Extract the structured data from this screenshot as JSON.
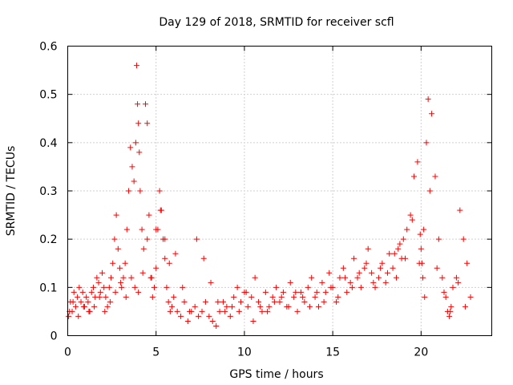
{
  "chart_data": {
    "type": "scatter",
    "title": "Day 129 of 2018, SRMTID for receiver scfl",
    "xlabel": "GPS time / hours",
    "ylabel": "SRMTID / TECUs",
    "xlim": [
      0,
      24
    ],
    "ylim": [
      0,
      0.6
    ],
    "xticks": [
      0,
      5,
      10,
      15,
      20
    ],
    "xtick_labels": [
      "0",
      "5",
      "10",
      "15",
      "20"
    ],
    "yticks": [
      0,
      0.1,
      0.2,
      0.3,
      0.4,
      0.5,
      0.6
    ],
    "ytick_labels": [
      "0",
      "0.1",
      "0.2",
      "0.3",
      "0.4",
      "0.5",
      "0.6"
    ],
    "grid": true,
    "marker": "+",
    "color": "#ff0000",
    "series": [
      {
        "name": "scfl",
        "x": [
          0.05,
          0.15,
          0.25,
          0.35,
          0.45,
          0.55,
          0.65,
          0.75,
          0.85,
          0.95,
          1.05,
          1.15,
          1.25,
          1.35,
          1.45,
          1.55,
          1.65,
          1.75,
          1.85,
          1.95,
          2.05,
          2.15,
          2.25,
          2.35,
          2.45,
          2.55,
          2.65,
          2.75,
          2.85,
          2.95,
          3.05,
          3.15,
          3.25,
          3.35,
          3.45,
          3.55,
          3.65,
          3.75,
          3.85,
          3.9,
          3.95,
          4.0,
          4.05,
          4.1,
          4.2,
          4.3,
          4.4,
          4.5,
          4.6,
          4.7,
          4.8,
          4.9,
          5.0,
          5.1,
          5.2,
          5.3,
          5.4,
          5.5,
          5.6,
          5.7,
          5.8,
          5.9,
          6.0,
          6.2,
          6.4,
          6.6,
          6.8,
          7.0,
          7.2,
          7.4,
          7.6,
          7.8,
          8.0,
          8.2,
          8.4,
          8.6,
          8.8,
          9.0,
          9.2,
          9.4,
          9.6,
          9.8,
          10.0,
          10.2,
          10.4,
          10.6,
          10.8,
          11.0,
          11.2,
          11.4,
          11.6,
          11.8,
          12.0,
          12.2,
          12.4,
          12.6,
          12.8,
          13.0,
          13.2,
          13.4,
          13.6,
          13.8,
          14.0,
          14.2,
          14.4,
          14.6,
          14.8,
          15.0,
          15.2,
          15.4,
          15.6,
          15.8,
          16.0,
          16.2,
          16.4,
          16.6,
          16.8,
          17.0,
          17.2,
          17.4,
          17.6,
          17.8,
          18.0,
          18.2,
          18.4,
          18.6,
          18.8,
          18.9,
          19.0,
          19.2,
          19.4,
          19.6,
          19.8,
          19.95,
          20.0,
          20.05,
          20.1,
          20.2,
          20.3,
          20.4,
          20.6,
          20.8,
          21.0,
          21.2,
          21.4,
          21.5,
          21.6,
          21.7,
          21.8,
          22.0,
          22.2,
          22.4,
          22.6,
          22.8,
          0.1,
          0.3,
          0.6,
          0.9,
          1.2,
          1.5,
          1.8,
          2.1,
          2.4,
          2.7,
          3.0,
          3.3,
          3.6,
          3.8,
          4.0,
          4.25,
          4.5,
          4.75,
          5.0,
          5.25,
          5.5,
          5.75,
          6.1,
          6.5,
          6.9,
          7.3,
          7.7,
          8.1,
          8.5,
          8.9,
          9.3,
          9.7,
          10.1,
          10.5,
          10.9,
          11.3,
          11.7,
          12.1,
          12.5,
          12.9,
          13.3,
          13.7,
          14.1,
          14.5,
          14.9,
          15.3,
          15.7,
          16.1,
          16.5,
          16.9,
          17.3,
          17.7,
          18.1,
          18.5,
          18.7,
          19.1,
          19.5,
          19.9,
          20.15,
          20.5,
          20.9,
          21.3,
          21.65,
          22.1,
          22.5
        ],
        "y": [
          0.04,
          0.07,
          0.05,
          0.09,
          0.06,
          0.08,
          0.1,
          0.07,
          0.09,
          0.06,
          0.08,
          0.07,
          0.05,
          0.09,
          0.1,
          0.08,
          0.12,
          0.11,
          0.09,
          0.13,
          0.1,
          0.08,
          0.06,
          0.1,
          0.12,
          0.15,
          0.2,
          0.25,
          0.18,
          0.14,
          0.1,
          0.12,
          0.15,
          0.22,
          0.3,
          0.39,
          0.35,
          0.32,
          0.4,
          0.56,
          0.48,
          0.44,
          0.38,
          0.3,
          0.22,
          0.18,
          0.48,
          0.44,
          0.25,
          0.12,
          0.08,
          0.1,
          0.14,
          0.22,
          0.3,
          0.26,
          0.2,
          0.16,
          0.1,
          0.07,
          0.05,
          0.06,
          0.08,
          0.05,
          0.04,
          0.07,
          0.03,
          0.05,
          0.06,
          0.04,
          0.05,
          0.07,
          0.04,
          0.03,
          0.02,
          0.05,
          0.07,
          0.06,
          0.04,
          0.08,
          0.1,
          0.07,
          0.09,
          0.06,
          0.08,
          0.12,
          0.07,
          0.05,
          0.09,
          0.06,
          0.08,
          0.1,
          0.07,
          0.09,
          0.06,
          0.11,
          0.08,
          0.05,
          0.09,
          0.07,
          0.1,
          0.12,
          0.08,
          0.06,
          0.11,
          0.09,
          0.13,
          0.1,
          0.07,
          0.12,
          0.14,
          0.09,
          0.11,
          0.16,
          0.12,
          0.1,
          0.14,
          0.18,
          0.13,
          0.1,
          0.12,
          0.15,
          0.11,
          0.17,
          0.14,
          0.12,
          0.19,
          0.16,
          0.2,
          0.22,
          0.25,
          0.33,
          0.36,
          0.21,
          0.18,
          0.15,
          0.12,
          0.08,
          0.4,
          0.49,
          0.46,
          0.33,
          0.2,
          0.12,
          0.08,
          0.05,
          0.04,
          0.06,
          0.1,
          0.12,
          0.26,
          0.2,
          0.15,
          0.08,
          0.05,
          0.07,
          0.04,
          0.06,
          0.05,
          0.06,
          0.08,
          0.05,
          0.07,
          0.09,
          0.11,
          0.08,
          0.12,
          0.1,
          0.09,
          0.13,
          0.2,
          0.12,
          0.22,
          0.26,
          0.2,
          0.15,
          0.17,
          0.1,
          0.05,
          0.2,
          0.16,
          0.11,
          0.07,
          0.05,
          0.06,
          0.05,
          0.09,
          0.03,
          0.06,
          0.05,
          0.07,
          0.08,
          0.06,
          0.09,
          0.08,
          0.06,
          0.09,
          0.07,
          0.1,
          0.08,
          0.12,
          0.1,
          0.13,
          0.15,
          0.11,
          0.14,
          0.13,
          0.17,
          0.18,
          0.16,
          0.24,
          0.15,
          0.22,
          0.3,
          0.14,
          0.09,
          0.05,
          0.11,
          0.06
        ]
      }
    ]
  }
}
